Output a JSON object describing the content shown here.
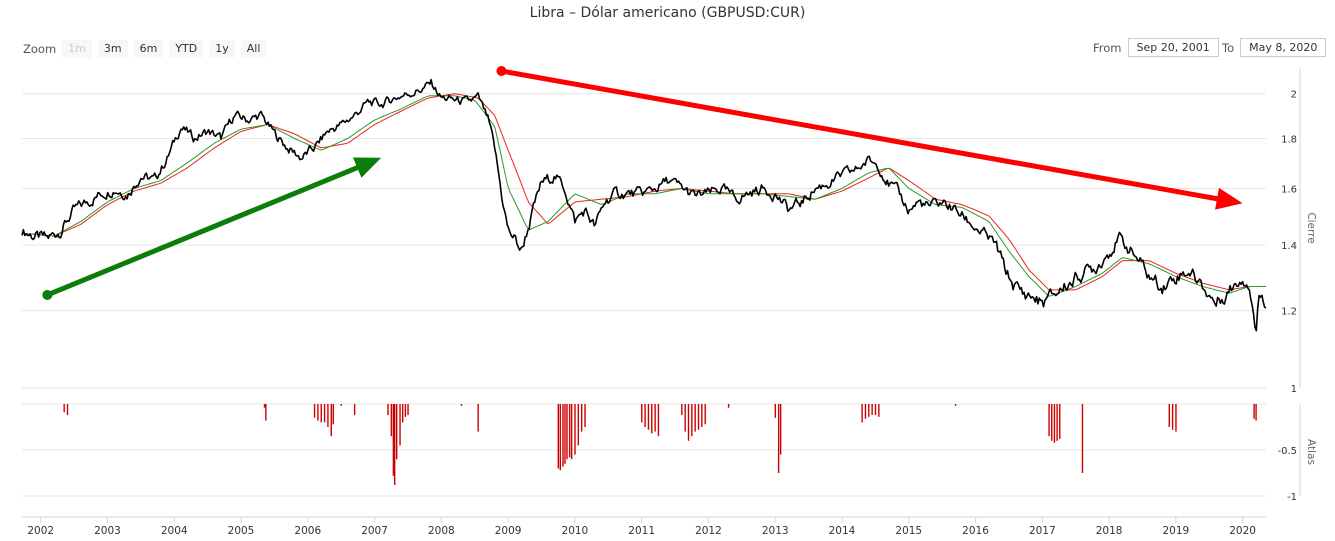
{
  "title": "Libra – Dólar americano (GBPUSD:CUR)",
  "zoom": {
    "label": "Zoom",
    "buttons": [
      "1m",
      "3m",
      "6m",
      "YTD",
      "1y",
      "All"
    ],
    "disabled": "1m"
  },
  "range": {
    "from_label": "From",
    "from_value": "Sep 20, 2001",
    "to_label": "To",
    "to_value": "May 8, 2020"
  },
  "colors": {
    "price": "#000000",
    "ma_short": "#2a9a2a",
    "ma_long": "#ee2222",
    "volume": "#cc0000",
    "up_arrow": "#0a7d0a",
    "down_arrow": "#ff0000"
  },
  "chart_data": [
    {
      "type": "line",
      "yaxis_title": "Cierre",
      "ylim": [
        1,
        2.1
      ],
      "yticks": [
        "1",
        "1.2",
        "1.4",
        "1.6",
        "1.8",
        "2"
      ],
      "xticks": [
        "2002",
        "2003",
        "2004",
        "2005",
        "2006",
        "2007",
        "2008",
        "2009",
        "2010",
        "2011",
        "2012",
        "2013",
        "2014",
        "2015",
        "2016",
        "2017",
        "2018",
        "2019",
        "2020"
      ],
      "xlim": [
        2001.72,
        2020.35
      ],
      "series": [
        {
          "key": "close",
          "x": [
            2001.72,
            2001.9,
            2002.1,
            2002.3,
            2002.5,
            2002.7,
            2002.9,
            2003.1,
            2003.3,
            2003.5,
            2003.7,
            2003.9,
            2004.1,
            2004.3,
            2004.5,
            2004.7,
            2004.9,
            2005.1,
            2005.3,
            2005.5,
            2005.7,
            2005.9,
            2006.1,
            2006.3,
            2006.5,
            2006.7,
            2006.9,
            2007.1,
            2007.3,
            2007.5,
            2007.7,
            2007.85,
            2008.0,
            2008.2,
            2008.4,
            2008.55,
            2008.7,
            2008.8,
            2008.9,
            2009.0,
            2009.1,
            2009.2,
            2009.35,
            2009.5,
            2009.7,
            2009.85,
            2010.0,
            2010.15,
            2010.3,
            2010.45,
            2010.6,
            2010.8,
            2011.0,
            2011.2,
            2011.4,
            2011.6,
            2011.8,
            2012.0,
            2012.2,
            2012.4,
            2012.6,
            2012.8,
            2013.0,
            2013.2,
            2013.4,
            2013.6,
            2013.8,
            2014.0,
            2014.2,
            2014.4,
            2014.55,
            2014.7,
            2014.85,
            2015.0,
            2015.15,
            2015.3,
            2015.5,
            2015.7,
            2015.9,
            2016.1,
            2016.3,
            2016.45,
            2016.55,
            2016.7,
            2016.85,
            2017.0,
            2017.2,
            2017.4,
            2017.6,
            2017.8,
            2018.0,
            2018.15,
            2018.3,
            2018.45,
            2018.6,
            2018.8,
            2019.0,
            2019.2,
            2019.4,
            2019.6,
            2019.75,
            2019.9,
            2020.0,
            2020.1,
            2020.2,
            2020.25,
            2020.3,
            2020.35
          ],
          "y": [
            1.45,
            1.43,
            1.42,
            1.45,
            1.52,
            1.55,
            1.58,
            1.6,
            1.58,
            1.65,
            1.63,
            1.72,
            1.85,
            1.8,
            1.83,
            1.8,
            1.9,
            1.88,
            1.9,
            1.82,
            1.76,
            1.72,
            1.76,
            1.83,
            1.86,
            1.9,
            1.96,
            1.95,
            1.98,
            2.0,
            2.02,
            2.05,
            1.98,
            1.97,
            1.96,
            1.98,
            1.88,
            1.75,
            1.58,
            1.45,
            1.42,
            1.38,
            1.5,
            1.62,
            1.65,
            1.6,
            1.48,
            1.52,
            1.46,
            1.55,
            1.58,
            1.58,
            1.58,
            1.6,
            1.63,
            1.6,
            1.57,
            1.58,
            1.6,
            1.56,
            1.58,
            1.6,
            1.58,
            1.52,
            1.55,
            1.6,
            1.62,
            1.65,
            1.67,
            1.71,
            1.69,
            1.62,
            1.58,
            1.52,
            1.55,
            1.53,
            1.55,
            1.52,
            1.48,
            1.44,
            1.4,
            1.32,
            1.28,
            1.25,
            1.24,
            1.22,
            1.25,
            1.28,
            1.31,
            1.33,
            1.38,
            1.42,
            1.39,
            1.35,
            1.3,
            1.27,
            1.3,
            1.32,
            1.27,
            1.22,
            1.25,
            1.28,
            1.3,
            1.28,
            1.14,
            1.25,
            1.24,
            1.23
          ]
        },
        {
          "key": "ma_short",
          "x": [
            2001.72,
            2002.2,
            2002.6,
            2003.0,
            2003.4,
            2003.8,
            2004.2,
            2004.6,
            2005.0,
            2005.4,
            2005.8,
            2006.2,
            2006.6,
            2007.0,
            2007.4,
            2007.8,
            2008.2,
            2008.5,
            2008.8,
            2009.0,
            2009.3,
            2009.6,
            2010.0,
            2010.4,
            2010.8,
            2011.2,
            2011.6,
            2012.0,
            2012.4,
            2012.8,
            2013.2,
            2013.6,
            2014.0,
            2014.4,
            2014.7,
            2015.0,
            2015.4,
            2015.8,
            2016.2,
            2016.5,
            2016.8,
            2017.1,
            2017.5,
            2017.9,
            2018.2,
            2018.6,
            2019.0,
            2019.4,
            2019.8,
            2020.1,
            2020.35
          ],
          "y": [
            1.44,
            1.43,
            1.48,
            1.55,
            1.6,
            1.63,
            1.7,
            1.78,
            1.84,
            1.86,
            1.8,
            1.75,
            1.8,
            1.88,
            1.93,
            1.99,
            1.99,
            1.97,
            1.85,
            1.6,
            1.45,
            1.48,
            1.58,
            1.54,
            1.58,
            1.58,
            1.6,
            1.58,
            1.58,
            1.58,
            1.57,
            1.56,
            1.6,
            1.66,
            1.68,
            1.6,
            1.54,
            1.53,
            1.48,
            1.38,
            1.3,
            1.24,
            1.27,
            1.31,
            1.36,
            1.34,
            1.3,
            1.27,
            1.25,
            1.27,
            1.27
          ]
        },
        {
          "key": "ma_long",
          "x": [
            2001.72,
            2002.2,
            2002.6,
            2003.0,
            2003.4,
            2003.8,
            2004.2,
            2004.6,
            2005.0,
            2005.4,
            2005.8,
            2006.2,
            2006.6,
            2007.0,
            2007.4,
            2007.8,
            2008.2,
            2008.55,
            2008.8,
            2009.0,
            2009.3,
            2009.6,
            2010.0,
            2010.4,
            2010.8,
            2011.2,
            2011.6,
            2012.0,
            2012.4,
            2012.8,
            2013.2,
            2013.6,
            2014.0,
            2014.4,
            2014.7,
            2015.0,
            2015.4,
            2015.8,
            2016.2,
            2016.5,
            2016.8,
            2017.1,
            2017.5,
            2017.9,
            2018.2,
            2018.6,
            2019.0,
            2019.4,
            2019.8,
            2020.1,
            2020.35
          ],
          "y": [
            1.44,
            1.43,
            1.47,
            1.54,
            1.59,
            1.62,
            1.68,
            1.76,
            1.83,
            1.86,
            1.82,
            1.76,
            1.78,
            1.86,
            1.92,
            1.98,
            2.0,
            1.98,
            1.9,
            1.75,
            1.55,
            1.47,
            1.55,
            1.56,
            1.57,
            1.59,
            1.6,
            1.59,
            1.58,
            1.58,
            1.58,
            1.56,
            1.59,
            1.64,
            1.68,
            1.63,
            1.56,
            1.54,
            1.5,
            1.42,
            1.32,
            1.26,
            1.26,
            1.3,
            1.35,
            1.35,
            1.31,
            1.28,
            1.26,
            1.27,
            1.27
          ]
        }
      ]
    },
    {
      "type": "bar",
      "yaxis_title": "Atlas",
      "ylim": [
        -1,
        0
      ],
      "yticks": [
        "-0.5",
        "-1"
      ],
      "bars": [
        [
          2002.35,
          -0.09
        ],
        [
          2002.4,
          -0.12
        ],
        [
          2005.35,
          -0.04
        ],
        [
          2005.37,
          -0.18
        ],
        [
          2006.1,
          -0.15
        ],
        [
          2006.15,
          -0.18
        ],
        [
          2006.2,
          -0.2
        ],
        [
          2006.25,
          -0.2
        ],
        [
          2006.3,
          -0.25
        ],
        [
          2006.35,
          -0.35
        ],
        [
          2006.38,
          -0.22
        ],
        [
          2006.5,
          -0.02
        ],
        [
          2006.7,
          -0.12
        ],
        [
          2007.2,
          -0.12
        ],
        [
          2007.25,
          -0.35
        ],
        [
          2007.28,
          -0.78
        ],
        [
          2007.3,
          -0.88
        ],
        [
          2007.33,
          -0.6
        ],
        [
          2007.38,
          -0.45
        ],
        [
          2007.42,
          -0.2
        ],
        [
          2007.46,
          -0.14
        ],
        [
          2007.5,
          -0.12
        ],
        [
          2008.3,
          -0.02
        ],
        [
          2008.55,
          -0.3
        ],
        [
          2009.75,
          -0.7
        ],
        [
          2009.78,
          -0.72
        ],
        [
          2009.82,
          -0.68
        ],
        [
          2009.85,
          -0.65
        ],
        [
          2009.88,
          -0.6
        ],
        [
          2009.92,
          -0.58
        ],
        [
          2009.95,
          -0.6
        ],
        [
          2010.0,
          -0.55
        ],
        [
          2010.05,
          -0.45
        ],
        [
          2010.1,
          -0.3
        ],
        [
          2010.15,
          -0.25
        ],
        [
          2011.0,
          -0.2
        ],
        [
          2011.05,
          -0.25
        ],
        [
          2011.1,
          -0.28
        ],
        [
          2011.15,
          -0.32
        ],
        [
          2011.2,
          -0.3
        ],
        [
          2011.25,
          -0.35
        ],
        [
          2011.6,
          -0.12
        ],
        [
          2011.65,
          -0.3
        ],
        [
          2011.7,
          -0.4
        ],
        [
          2011.75,
          -0.35
        ],
        [
          2011.8,
          -0.3
        ],
        [
          2011.85,
          -0.28
        ],
        [
          2011.9,
          -0.25
        ],
        [
          2011.95,
          -0.22
        ],
        [
          2012.3,
          -0.04
        ],
        [
          2013.0,
          -0.15
        ],
        [
          2013.05,
          -0.75
        ],
        [
          2013.08,
          -0.55
        ],
        [
          2014.3,
          -0.2
        ],
        [
          2014.35,
          -0.16
        ],
        [
          2014.4,
          -0.14
        ],
        [
          2014.45,
          -0.12
        ],
        [
          2014.5,
          -0.12
        ],
        [
          2014.55,
          -0.14
        ],
        [
          2015.7,
          -0.02
        ],
        [
          2017.1,
          -0.35
        ],
        [
          2017.14,
          -0.4
        ],
        [
          2017.18,
          -0.42
        ],
        [
          2017.22,
          -0.4
        ],
        [
          2017.26,
          -0.38
        ],
        [
          2017.6,
          -0.75
        ],
        [
          2018.9,
          -0.25
        ],
        [
          2018.95,
          -0.28
        ],
        [
          2019.0,
          -0.3
        ],
        [
          2020.17,
          -0.16
        ],
        [
          2020.2,
          -0.18
        ]
      ]
    }
  ],
  "annotations": {
    "up_arrow": {
      "x1": 2002.1,
      "y1": 1.245,
      "x2": 2007.1,
      "y2": 1.72
    },
    "down_arrow": {
      "x1": 2008.9,
      "y1": 2.11,
      "x2": 2020.0,
      "y2": 1.545
    }
  }
}
